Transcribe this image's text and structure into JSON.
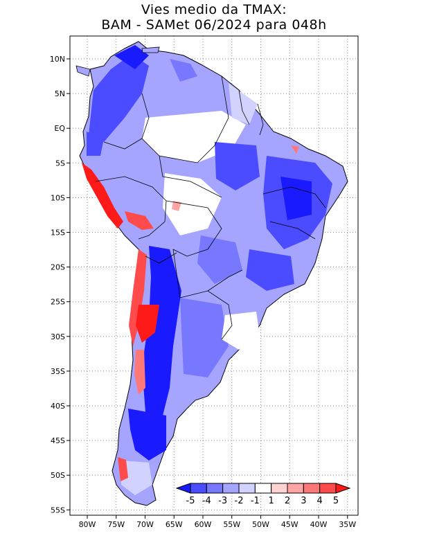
{
  "title": {
    "line1": "Vies medio da TMAX:",
    "line2": "BAM - SAMet 06/2024  para 048h"
  },
  "map": {
    "lat_labels": [
      "10N",
      "5N",
      "EQ",
      "5S",
      "10S",
      "15S",
      "20S",
      "25S",
      "30S",
      "35S",
      "40S",
      "45S",
      "50S",
      "55S"
    ],
    "lon_labels": [
      "80W",
      "75W",
      "70W",
      "65W",
      "60W",
      "55W",
      "50W",
      "45W",
      "40W",
      "35W"
    ],
    "lat_values": [
      10,
      5,
      0,
      -5,
      -10,
      -15,
      -20,
      -25,
      -30,
      -35,
      -40,
      -45,
      -50,
      -55
    ],
    "lon_values": [
      -80,
      -75,
      -70,
      -65,
      -60,
      -55,
      -50,
      -45,
      -40,
      -35
    ],
    "lon_range": [
      -83,
      -34
    ],
    "lat_range": [
      -56,
      13
    ]
  },
  "colorbar": {
    "labels": [
      "-5",
      "-4",
      "-3",
      "-2",
      "-1",
      "1",
      "2",
      "3",
      "4",
      "5"
    ],
    "colors": [
      "#1a1aff",
      "#4b4bff",
      "#7878ff",
      "#a5a5ff",
      "#d2d2ff",
      "#ffffff",
      "#ffd2d2",
      "#ffa5a5",
      "#ff7878",
      "#ff4b4b",
      "#ff1a1a"
    ]
  }
}
